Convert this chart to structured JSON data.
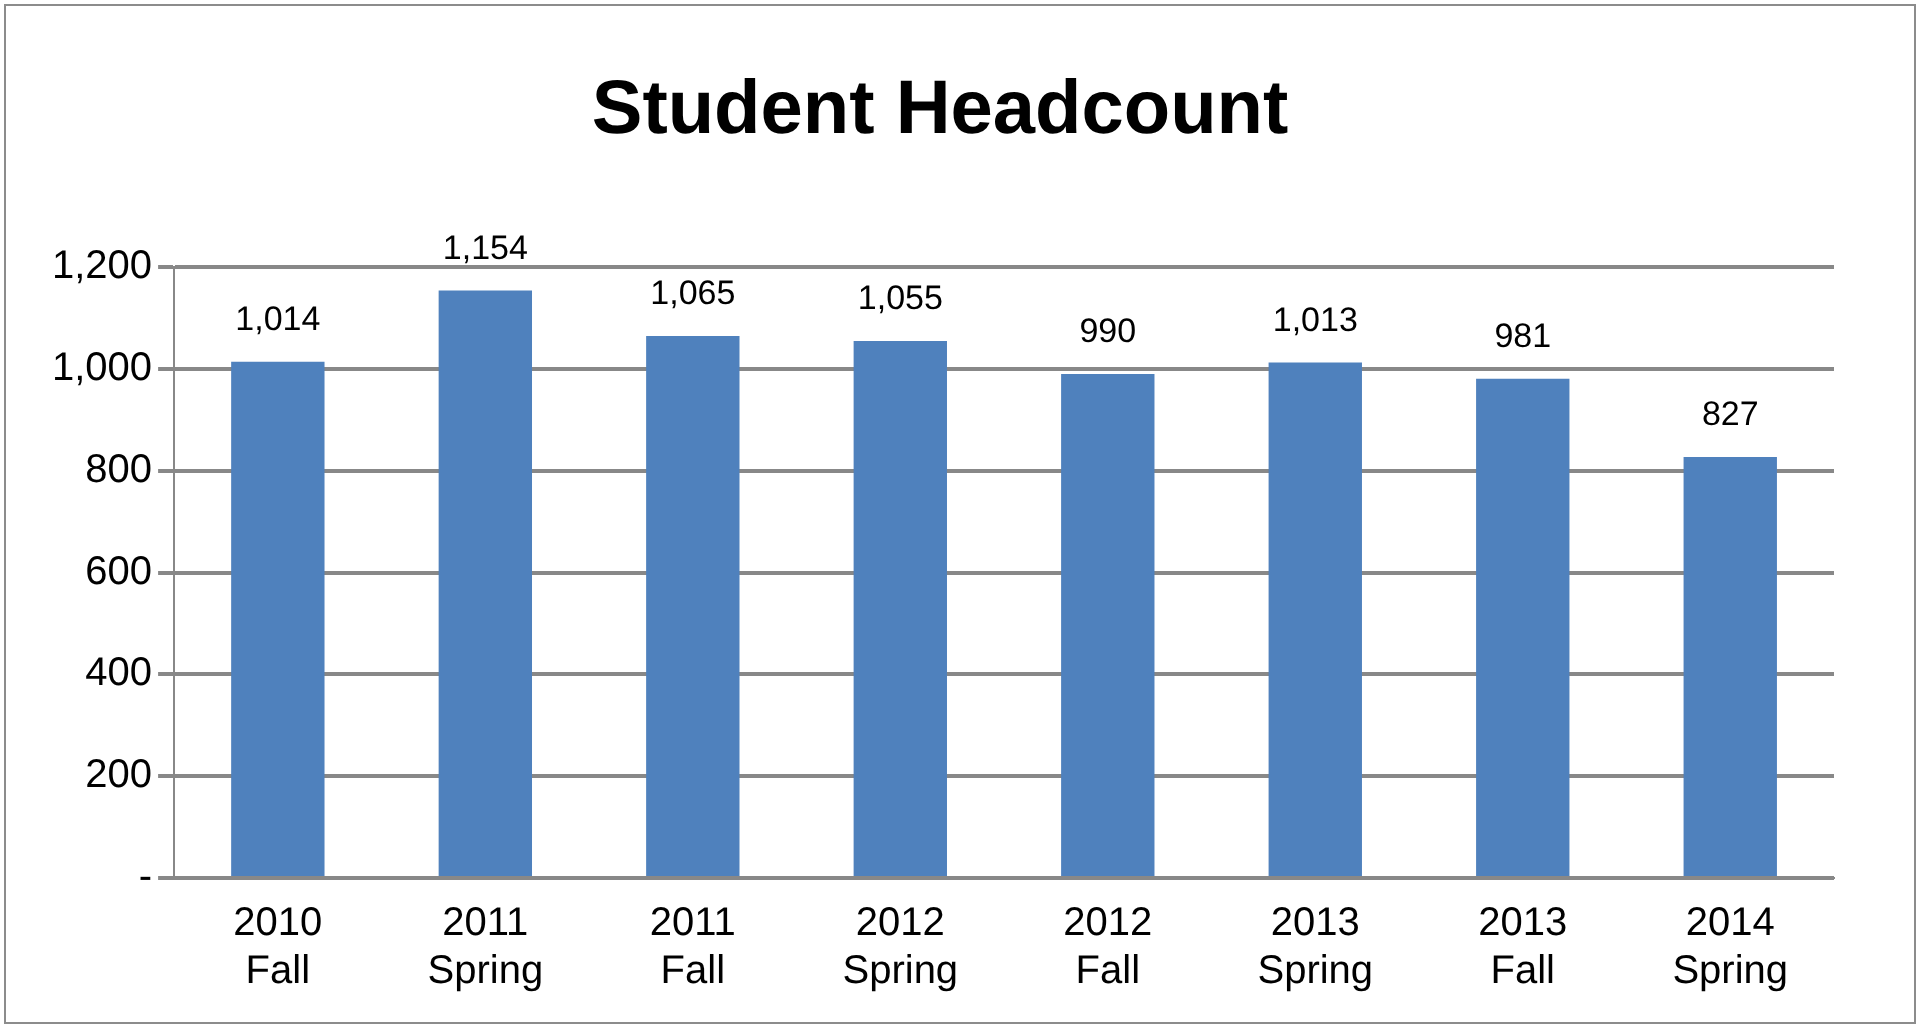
{
  "chart_data": {
    "type": "bar",
    "title": "Student Headcount",
    "categories": [
      "2010 Fall",
      "2011 Spring",
      "2011 Fall",
      "2012 Spring",
      "2012 Fall",
      "2013 Spring",
      "2013 Fall",
      "2014 Spring"
    ],
    "values": [
      1014,
      1154,
      1065,
      1055,
      990,
      1013,
      981,
      827
    ],
    "value_labels": [
      "1,014",
      "1,154",
      "1,065",
      "1,055",
      "990",
      "1,013",
      "981",
      "827"
    ],
    "color": "#4f81bd",
    "ylim": [
      0,
      1200
    ],
    "yticks": [
      {
        "value": 0,
        "label": "-"
      },
      {
        "value": 200,
        "label": "200"
      },
      {
        "value": 400,
        "label": "400"
      },
      {
        "value": 600,
        "label": "600"
      },
      {
        "value": 800,
        "label": "800"
      },
      {
        "value": 1000,
        "label": "1,000"
      },
      {
        "value": 1200,
        "label": "1,200"
      }
    ],
    "grid": "y",
    "legend": false
  }
}
